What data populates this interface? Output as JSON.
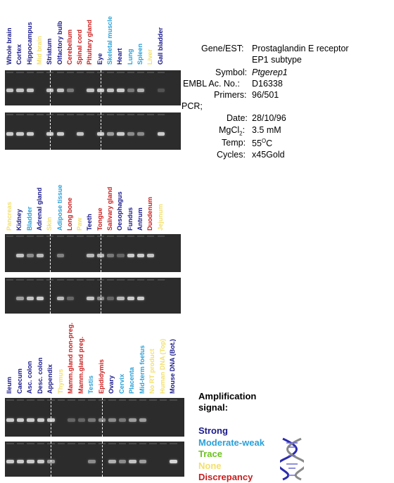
{
  "colors": {
    "strong": "#1a1a8c",
    "moderate_weak": "#2aa0d8",
    "trace": "#6cc21e",
    "none": "#f3e06a",
    "discrepancy": "#c81e1e",
    "gel_bg": "#2c2c2c",
    "band": "#e9e9e9"
  },
  "info": {
    "gene_label": "Gene/EST:",
    "gene_value_line1": "Prostaglandin E receptor",
    "gene_value_line2": "EP1 subtype",
    "symbol_label": "Symbol:",
    "symbol_value": "Ptgerep1",
    "embl_label": "EMBL Ac. No.:",
    "embl_value": "D16338",
    "primers_label": "Primers:",
    "primers_value": "96/501",
    "pcr_label": "PCR;",
    "date_label": "Date:",
    "date_value": "28/10/96",
    "mgcl_label_prefix": "MgCl",
    "mgcl_label_sub": "2",
    "mgcl_label_suffix": ":",
    "mgcl_value": "3.5 mM",
    "temp_label": "Temp:",
    "temp_value_main": "55",
    "temp_value_sup": "O",
    "temp_value_suffix": "C",
    "cycles_label": "Cycles:",
    "cycles_value": "x45Gold"
  },
  "legend": {
    "title_line1": "Amplification",
    "title_line2": "signal:",
    "items": [
      {
        "label": "Strong",
        "key": "strong"
      },
      {
        "label": "Moderate-weak",
        "key": "moderate_weak"
      },
      {
        "label": "Trace",
        "key": "trace"
      },
      {
        "label": "None",
        "key": "none"
      },
      {
        "label": "Discrepancy",
        "key": "discrepancy"
      }
    ]
  },
  "panels": [
    {
      "lanes": [
        {
          "label": "Whole brain",
          "signal": "strong",
          "bands": [
            0.8,
            0.85
          ]
        },
        {
          "label": "Cortex",
          "signal": "strong",
          "bands": [
            0.8,
            0.85
          ]
        },
        {
          "label": "Hippocampus",
          "signal": "strong",
          "bands": [
            0.8,
            0.85
          ]
        },
        {
          "label": "Mid brain",
          "signal": "none",
          "bands": [
            0,
            0
          ]
        },
        {
          "label": "Striatum",
          "signal": "strong",
          "bands": [
            0.8,
            0.85
          ]
        },
        {
          "label": "Olfactory bulb",
          "signal": "strong",
          "bands": [
            0.8,
            0.85
          ]
        },
        {
          "label": "Cerebellum",
          "signal": "discrepancy",
          "bands": [
            0.4,
            0
          ]
        },
        {
          "label": "Spinal cord",
          "signal": "discrepancy",
          "bands": [
            0,
            0.8
          ]
        },
        {
          "label": "Pituitary gland",
          "signal": "discrepancy",
          "bands": [
            0.8,
            0
          ]
        },
        {
          "label": "Eye",
          "signal": "strong",
          "bands": [
            0.85,
            0.85
          ]
        },
        {
          "label": "Skeletal muscle",
          "signal": "moderate_weak",
          "bands": [
            0.8,
            0.6
          ]
        },
        {
          "label": "Heart",
          "signal": "strong",
          "bands": [
            0.85,
            0.85
          ]
        },
        {
          "label": "Lung",
          "signal": "moderate_weak",
          "bands": [
            0.4,
            0.5
          ]
        },
        {
          "label": "Spleen",
          "signal": "moderate_weak",
          "bands": [
            0.7,
            0.5
          ]
        },
        {
          "label": "Liver",
          "signal": "none",
          "bands": [
            0,
            0
          ]
        },
        {
          "label": "Gall bladder",
          "signal": "strong",
          "bands": [
            0.2,
            0.85
          ]
        }
      ]
    },
    {
      "lanes": [
        {
          "label": "Pancreas",
          "signal": "none",
          "bands": [
            0,
            0
          ]
        },
        {
          "label": "Kidney",
          "signal": "strong",
          "bands": [
            0.8,
            0.6
          ]
        },
        {
          "label": "Bladder",
          "signal": "moderate_weak",
          "bands": [
            0.5,
            0.8
          ]
        },
        {
          "label": "Adrenal gland",
          "signal": "strong",
          "bands": [
            0.75,
            0.85
          ]
        },
        {
          "label": "Skin",
          "signal": "none",
          "bands": [
            0,
            0
          ]
        },
        {
          "label": "Adipose tissue",
          "signal": "moderate_weak",
          "bands": [
            0.45,
            0.75
          ]
        },
        {
          "label": "Long bone",
          "signal": "discrepancy",
          "bands": [
            0,
            0.3
          ]
        },
        {
          "label": "Paw",
          "signal": "none",
          "bands": [
            0,
            0
          ]
        },
        {
          "label": "Teeth",
          "signal": "strong",
          "bands": [
            0.75,
            0.8
          ]
        },
        {
          "label": "Tongue",
          "signal": "discrepancy",
          "bands": [
            0.75,
            0.5
          ]
        },
        {
          "label": "Salivary gland",
          "signal": "discrepancy",
          "bands": [
            0.4,
            0.3
          ]
        },
        {
          "label": "Oesophagus",
          "signal": "strong",
          "bands": [
            0.3,
            0.75
          ]
        },
        {
          "label": "Fundus",
          "signal": "strong",
          "bands": [
            0.85,
            0.85
          ]
        },
        {
          "label": "Antrum",
          "signal": "strong",
          "bands": [
            0.85,
            0.85
          ]
        },
        {
          "label": "Duodenum",
          "signal": "discrepancy",
          "bands": [
            0.8,
            0
          ]
        },
        {
          "label": "Jejunum",
          "signal": "none",
          "bands": [
            0,
            0
          ]
        }
      ]
    },
    {
      "lanes": [
        {
          "label": "Ileum",
          "signal": "strong",
          "bands": [
            0.85,
            0.85
          ]
        },
        {
          "label": "Caecum",
          "signal": "strong",
          "bands": [
            0.85,
            0.85
          ]
        },
        {
          "label": "Asc. colon",
          "signal": "strong",
          "bands": [
            0.85,
            0.85
          ]
        },
        {
          "label": "Desc. colon",
          "signal": "strong",
          "bands": [
            0.85,
            0.85
          ]
        },
        {
          "label": "Appendix",
          "signal": "strong",
          "bands": [
            0.85,
            0.6
          ]
        },
        {
          "label": "Thymus",
          "signal": "none",
          "bands": [
            0,
            0
          ]
        },
        {
          "label": "Mamm.gland non-preg.",
          "signal": "discrepancy",
          "bands": [
            0.3,
            0
          ]
        },
        {
          "label": "Mamm.gland preg.",
          "signal": "discrepancy",
          "bands": [
            0.3,
            0
          ]
        },
        {
          "label": "Testis",
          "signal": "moderate_weak",
          "bands": [
            0.4,
            0.5
          ]
        },
        {
          "label": "Epididymis",
          "signal": "discrepancy",
          "bands": [
            0.5,
            0
          ]
        },
        {
          "label": "Ovary",
          "signal": "strong",
          "bands": [
            0.5,
            0.7
          ]
        },
        {
          "label": "Cervix",
          "signal": "moderate_weak",
          "bands": [
            0.4,
            0.5
          ]
        },
        {
          "label": "Placenta",
          "signal": "moderate_weak",
          "bands": [
            0.6,
            0.8
          ]
        },
        {
          "label": "Mid-term foetus",
          "signal": "moderate_weak",
          "bands": [
            0.6,
            0.6
          ]
        },
        {
          "label": "No RT product",
          "signal": "none",
          "bands": [
            0,
            0
          ]
        },
        {
          "label": "Human DNA (Top)",
          "signal": "none",
          "bands": [
            0,
            0
          ]
        },
        {
          "label": "Mouse DNA (Bot.)",
          "signal": "strong",
          "bands": [
            0,
            0.9
          ]
        }
      ]
    }
  ]
}
